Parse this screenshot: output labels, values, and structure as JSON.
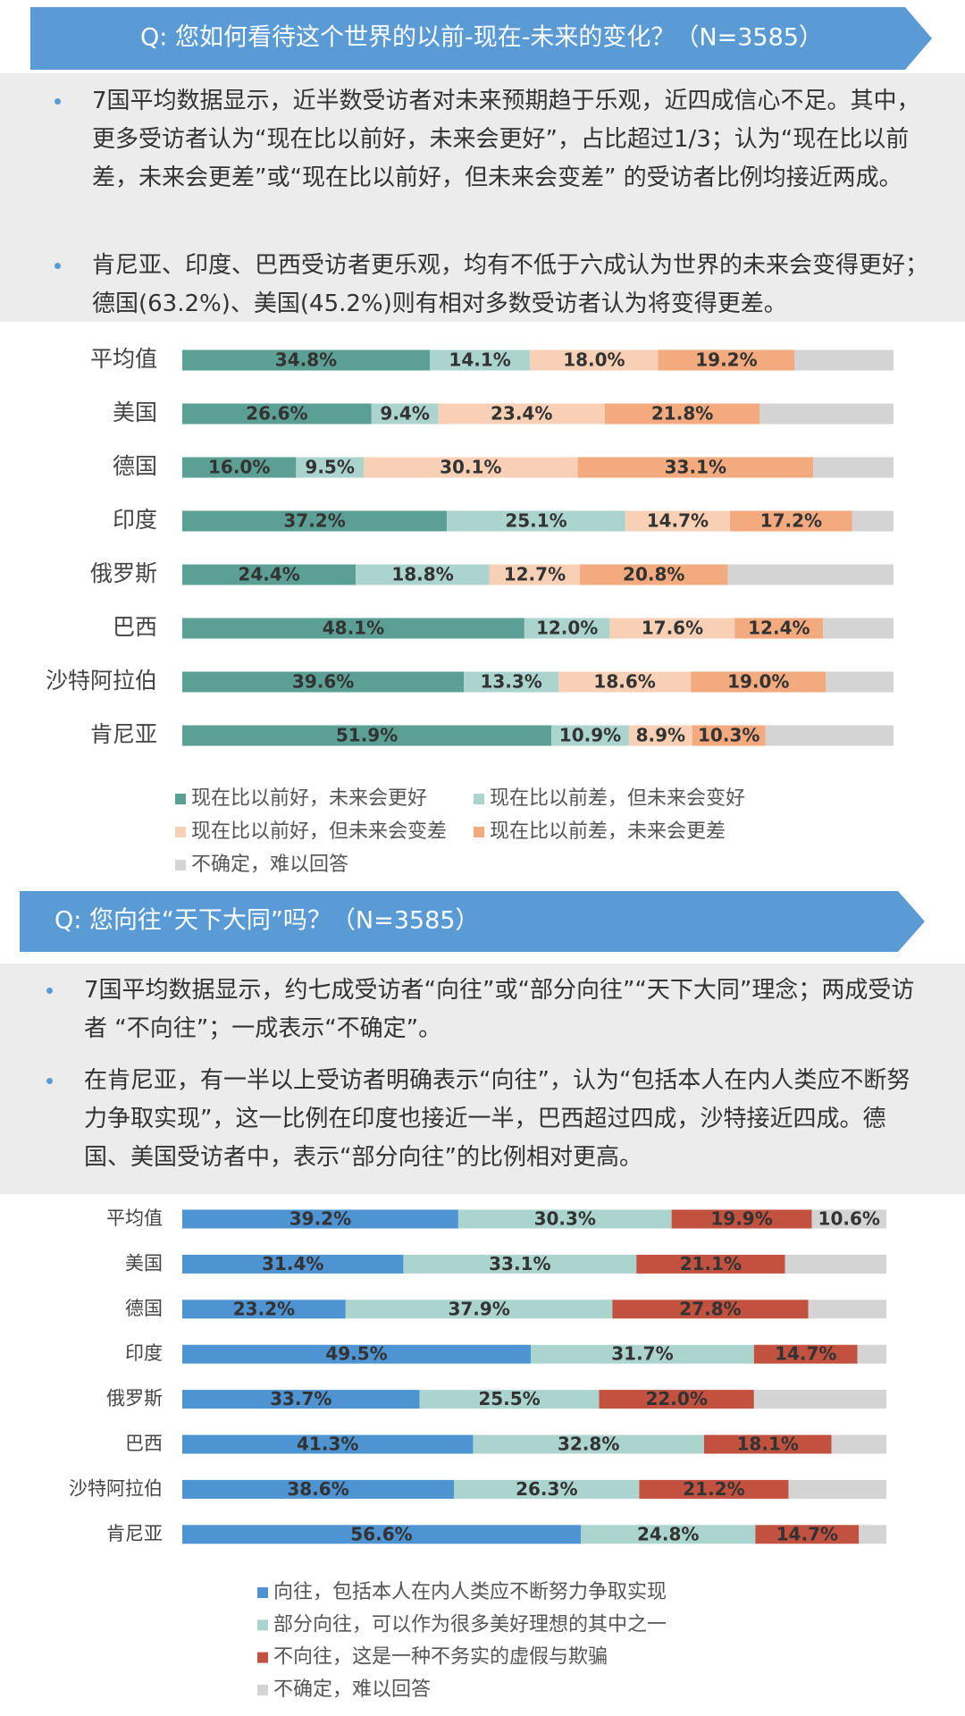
{
  "chart_data": [
    {
      "type": "stacked-bar-horizontal",
      "title": "Q: 您如何看待这个世界的以前-现在-未来的变化？（N=3585）",
      "bullets": [
        "7国平均数据显示，近半数受访者对未来预期趋于乐观，近四成信心不足。其中，更多受访者认为“现在比以前好，未来会更好”，占比超过1/3；认为“现在比以前差，未来会更差”或“现在比以前好，但未来会变差” 的受访者比例均接近两成。",
        "肯尼亚、印度、巴西受访者更乐观，均有不低于六成认为世界的未来会变得更好；德国(63.2%)、美国(45.2%)则有相对多数受访者认为将变得更差。"
      ],
      "categories": [
        "平均值",
        "美国",
        "德国",
        "印度",
        "俄罗斯",
        "巴西",
        "沙特阿拉伯",
        "肯尼亚"
      ],
      "xlim": [
        0,
        100
      ],
      "series": [
        {
          "name": "现在比以前好，未来会更好",
          "color": "#5b9f95",
          "values": [
            34.8,
            26.6,
            16.0,
            37.2,
            24.4,
            48.1,
            39.6,
            51.9
          ],
          "value_labels": [
            "34.8%",
            "26.6%",
            "16.0%",
            "37.2%",
            "24.4%",
            "48.1%",
            "39.6%",
            "51.9%"
          ]
        },
        {
          "name": "现在比以前差，但未来会变好",
          "color": "#acd4cf",
          "values": [
            14.1,
            9.4,
            9.5,
            25.1,
            18.8,
            12.0,
            13.3,
            10.9
          ],
          "value_labels": [
            "14.1%",
            "9.4%",
            "9.5%",
            "25.1%",
            "18.8%",
            "12.0%",
            "13.3%",
            "10.9%"
          ]
        },
        {
          "name": "现在比以前好，但未来会变差",
          "color": "#f8d0b5",
          "values": [
            18.0,
            23.4,
            30.1,
            14.7,
            12.7,
            17.6,
            18.6,
            8.9
          ],
          "value_labels": [
            "18.0%",
            "23.4%",
            "30.1%",
            "14.7%",
            "12.7%",
            "17.6%",
            "18.6%",
            "8.9%"
          ]
        },
        {
          "name": "现在比以前差，未来会更差",
          "color": "#f2aa7e",
          "values": [
            19.2,
            21.8,
            33.1,
            17.2,
            20.8,
            12.4,
            19.0,
            10.3
          ],
          "value_labels": [
            "19.2%",
            "21.8%",
            "33.1%",
            "17.2%",
            "20.8%",
            "12.4%",
            "19.0%",
            "10.3%"
          ]
        },
        {
          "name": "不确定，难以回答",
          "color": "#d4d4d4",
          "values": [
            13.9,
            18.8,
            11.3,
            5.8,
            23.3,
            9.9,
            9.5,
            18.0
          ]
        }
      ]
    },
    {
      "type": "stacked-bar-horizontal",
      "title": "Q: 您向往“天下大同”吗？（N=3585）",
      "bullets": [
        "7国平均数据显示，约七成受访者“向往”或“部分向往”“天下大同”理念；两成受访者 “不向往”；一成表示“不确定”。",
        "在肯尼亚，有一半以上受访者明确表示“向往”，认为“包括本人在内人类应不断努力争取实现”，这一比例在印度也接近一半，巴西超过四成，沙特接近四成。德国、美国受访者中，表示“部分向往”的比例相对更高。"
      ],
      "categories": [
        "平均值",
        "美国",
        "德国",
        "印度",
        "俄罗斯",
        "巴西",
        "沙特阿拉伯",
        "肯尼亚"
      ],
      "xlim": [
        0,
        100
      ],
      "series": [
        {
          "name": "向往，包括本人在内人类应不断努力争取实现",
          "color": "#4e93d2",
          "values": [
            39.2,
            31.4,
            23.2,
            49.5,
            33.7,
            41.3,
            38.6,
            56.6
          ],
          "value_labels": [
            "39.2%",
            "31.4%",
            "23.2%",
            "49.5%",
            "33.7%",
            "41.3%",
            "38.6%",
            "56.6%"
          ]
        },
        {
          "name": "部分向往，可以作为很多美好理想的其中之一",
          "color": "#acd4cf",
          "values": [
            30.3,
            33.1,
            37.9,
            31.7,
            25.5,
            32.8,
            26.3,
            24.8
          ],
          "value_labels": [
            "30.3%",
            "33.1%",
            "37.9%",
            "31.7%",
            "25.5%",
            "32.8%",
            "26.3%",
            "24.8%"
          ]
        },
        {
          "name": "不向往，这是一种不务实的虚假与欺骗",
          "color": "#c2513f",
          "values": [
            19.9,
            21.1,
            27.8,
            14.7,
            22.0,
            18.1,
            21.2,
            14.7
          ],
          "value_labels": [
            "19.9%",
            "21.1%",
            "27.8%",
            "14.7%",
            "22.0%",
            "18.1%",
            "21.2%",
            "14.7%"
          ]
        },
        {
          "name": "不确定，难以回答",
          "color": "#d4d4d4",
          "values": [
            10.6,
            14.4,
            11.1,
            4.1,
            18.8,
            7.8,
            13.9,
            3.9
          ],
          "value_labels": [
            "10.6%",
            null,
            null,
            null,
            null,
            null,
            null,
            null
          ]
        }
      ]
    }
  ]
}
